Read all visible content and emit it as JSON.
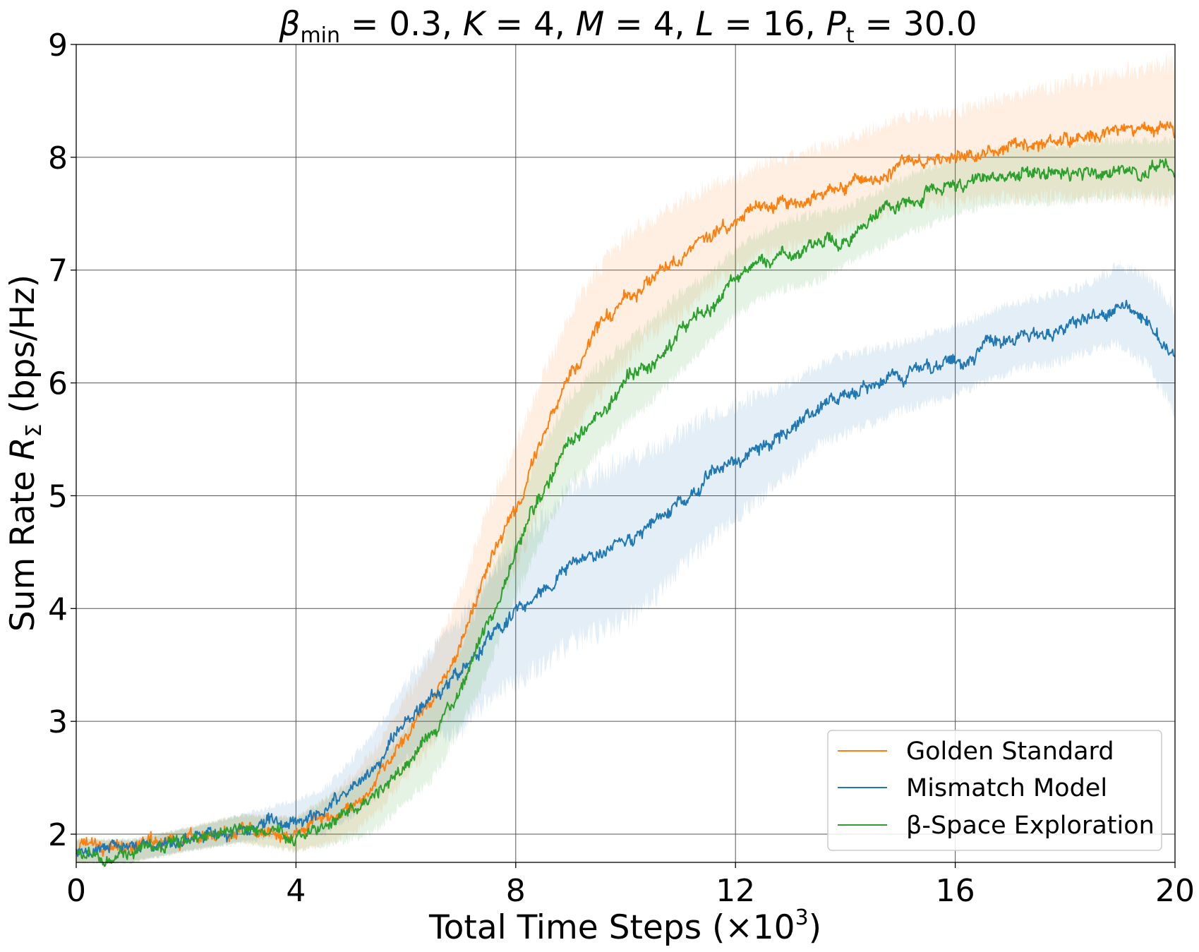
{
  "chart_data": {
    "type": "line",
    "title": {
      "beta": "β",
      "beta_sub": "min",
      "rest_1": " = 0.3, ",
      "K": "K",
      "rest_2": " = 4, ",
      "M": "M",
      "rest_3": " = 4, ",
      "L": "L",
      "rest_4": " = 16, ",
      "P": "P",
      "P_sub": "t",
      "rest_5": " = 30.0"
    },
    "xlabel": {
      "text": "Total Time Steps (×10",
      "sup": "3",
      "close": ")"
    },
    "ylabel": {
      "text": "Sum Rate ",
      "R": "R",
      "R_sub": "Σ",
      "unit": " (bps/Hz)"
    },
    "xlim": [
      0,
      20
    ],
    "ylim": [
      1.75,
      9
    ],
    "xticks": [
      "0",
      "4",
      "8",
      "12",
      "16",
      "20"
    ],
    "yticks": [
      "2",
      "3",
      "4",
      "5",
      "6",
      "7",
      "8",
      "9"
    ],
    "grid": true,
    "legend_position": "lower-right",
    "colors": {
      "golden": "#ff7f0e",
      "mismatch": "#1f77b4",
      "beta": "#2ca02c"
    },
    "series": [
      {
        "name": "Golden Standard",
        "color": "#ff7f0e",
        "x": [
          0,
          1,
          2,
          3,
          4,
          4.5,
          5,
          5.5,
          6,
          6.5,
          7,
          7.5,
          8,
          8.5,
          9,
          9.5,
          10,
          10.5,
          11,
          11.5,
          12,
          12.5,
          13,
          14,
          15,
          16,
          17,
          18,
          19,
          20
        ],
        "y": [
          1.85,
          1.85,
          1.95,
          2.05,
          2.0,
          2.1,
          2.25,
          2.5,
          2.85,
          3.2,
          3.7,
          4.4,
          4.9,
          5.5,
          6.1,
          6.45,
          6.75,
          6.95,
          7.1,
          7.3,
          7.4,
          7.55,
          7.6,
          7.75,
          7.95,
          8.0,
          8.1,
          8.15,
          8.2,
          8.25
        ],
        "band": [
          0.1,
          0.1,
          0.1,
          0.12,
          0.15,
          0.2,
          0.25,
          0.3,
          0.35,
          0.4,
          0.45,
          0.5,
          0.55,
          0.55,
          0.55,
          0.55,
          0.55,
          0.5,
          0.5,
          0.45,
          0.4,
          0.4,
          0.4,
          0.4,
          0.4,
          0.4,
          0.45,
          0.5,
          0.55,
          0.6
        ]
      },
      {
        "name": "Mismatch Model",
        "color": "#1f77b4",
        "x": [
          0,
          1,
          2,
          3,
          4,
          4.5,
          5,
          5.5,
          6,
          6.5,
          7,
          7.5,
          8,
          8.5,
          9,
          9.5,
          10,
          10.5,
          11,
          11.5,
          12,
          12.5,
          13,
          13.5,
          14,
          15,
          16,
          17,
          18,
          18.5,
          19,
          19.5,
          20
        ],
        "y": [
          1.85,
          1.85,
          1.95,
          2.05,
          2.15,
          2.2,
          2.4,
          2.65,
          3.0,
          3.25,
          3.4,
          3.75,
          3.95,
          4.15,
          4.4,
          4.5,
          4.6,
          4.75,
          4.95,
          5.15,
          5.3,
          5.45,
          5.6,
          5.8,
          5.9,
          6.05,
          6.2,
          6.4,
          6.5,
          6.6,
          6.7,
          6.55,
          6.2
        ],
        "band": [
          0.1,
          0.1,
          0.1,
          0.12,
          0.15,
          0.2,
          0.25,
          0.3,
          0.35,
          0.4,
          0.5,
          0.55,
          0.6,
          0.65,
          0.7,
          0.7,
          0.7,
          0.65,
          0.6,
          0.55,
          0.5,
          0.45,
          0.4,
          0.35,
          0.35,
          0.3,
          0.3,
          0.3,
          0.3,
          0.3,
          0.35,
          0.4,
          0.45
        ]
      },
      {
        "name": "β-Space Exploration",
        "color": "#2ca02c",
        "x": [
          0,
          1,
          2,
          3,
          4,
          4.5,
          5,
          5.5,
          6,
          6.5,
          7,
          7.5,
          8,
          8.5,
          9,
          9.5,
          10,
          10.5,
          11,
          11.5,
          12,
          12.5,
          13,
          13.5,
          14,
          15,
          16,
          17,
          18,
          19,
          20
        ],
        "y": [
          1.85,
          1.85,
          1.95,
          2.05,
          2.0,
          2.1,
          2.2,
          2.35,
          2.6,
          2.85,
          3.3,
          3.85,
          4.5,
          5.05,
          5.5,
          5.75,
          6.0,
          6.2,
          6.45,
          6.65,
          6.9,
          7.05,
          7.15,
          7.2,
          7.3,
          7.55,
          7.75,
          7.85,
          7.85,
          7.9,
          7.9
        ],
        "band": [
          0.1,
          0.1,
          0.1,
          0.12,
          0.15,
          0.2,
          0.25,
          0.3,
          0.3,
          0.35,
          0.35,
          0.4,
          0.4,
          0.4,
          0.4,
          0.4,
          0.35,
          0.35,
          0.35,
          0.3,
          0.3,
          0.3,
          0.3,
          0.3,
          0.25,
          0.25,
          0.25,
          0.25,
          0.25,
          0.25,
          0.25
        ]
      }
    ]
  }
}
